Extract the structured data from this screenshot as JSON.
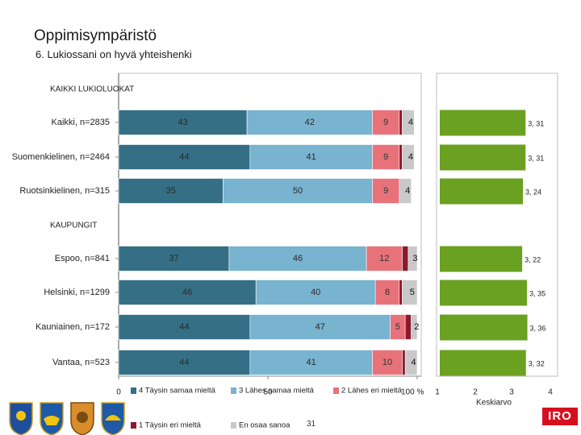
{
  "page": {
    "title": "Oppimisympäristö",
    "subtitle": "6. Lukiossani on hyvä yhteishenki",
    "page_number": "31"
  },
  "colors": {
    "s4": "#356f86",
    "s3": "#78b3cf",
    "s2": "#e8727a",
    "s1": "#8b1a2c",
    "s0": "#c9c9c9",
    "avg": "#6aa121"
  },
  "chart_data": {
    "type": "bar",
    "orientation": "horizontal",
    "stacked": true,
    "title": "6. Lukiossani on hyvä yhteishenki",
    "groups": [
      {
        "label": "KAIKKI LUKIOLUOKAT",
        "categories": [
          "Kaikki, n=2835",
          "Suomenkielinen, n=2464",
          "Ruotsinkielinen, n=315"
        ]
      },
      {
        "label": "KAUPUNGIT",
        "categories": [
          "Espoo, n=841",
          "Helsinki, n=1299",
          "Kauniainen, n=172",
          "Vantaa, n=523"
        ]
      }
    ],
    "categories": [
      "Kaikki, n=2835",
      "Suomenkielinen, n=2464",
      "Ruotsinkielinen, n=315",
      "Espoo, n=841",
      "Helsinki, n=1299",
      "Kauniainen, n=172",
      "Vantaa, n=523"
    ],
    "series": [
      {
        "name": "4 Täysin samaa mieltä",
        "color_key": "s4",
        "values": [
          43,
          44,
          35,
          37,
          46,
          44,
          44
        ]
      },
      {
        "name": "3 Lähes samaa mieltä",
        "color_key": "s3",
        "values": [
          42,
          41,
          50,
          46,
          40,
          47,
          41
        ]
      },
      {
        "name": "2 Lähes eri mieltä",
        "color_key": "s2",
        "values": [
          9,
          9,
          9,
          12,
          8,
          5,
          10
        ]
      },
      {
        "name": "1 Täysin eri mieltä",
        "color_key": "s1",
        "values": [
          1,
          1,
          0,
          2,
          1,
          2,
          1
        ]
      },
      {
        "name": "En osaa sanoa",
        "color_key": "s0",
        "values": [
          4,
          4,
          4,
          3,
          5,
          2,
          4
        ]
      }
    ],
    "label_texts": [
      [
        "43",
        "42",
        "9",
        "",
        "4"
      ],
      [
        "44",
        "41",
        "9",
        "",
        "4"
      ],
      [
        "35",
        "50",
        "9",
        "",
        "4"
      ],
      [
        "37",
        "46",
        "12",
        "2",
        "3"
      ],
      [
        "46",
        "40",
        "8",
        "",
        "5"
      ],
      [
        "44",
        "47",
        "5",
        "2",
        "2"
      ],
      [
        "44",
        "41",
        "10",
        "",
        "4"
      ]
    ],
    "x_ticks": [
      "0",
      "50",
      "100 %"
    ],
    "xlim": [
      0,
      100
    ],
    "average": {
      "xlabel": "Keskiarvo",
      "xlim": [
        1,
        4
      ],
      "ticks": [
        "1",
        "2",
        "3",
        "4"
      ],
      "values": [
        3.31,
        3.31,
        3.24,
        3.22,
        3.35,
        3.36,
        3.32
      ],
      "labels": [
        "3, 31",
        "3, 31",
        "3, 24",
        "3, 22",
        "3, 35",
        "3, 36",
        "3, 32"
      ]
    }
  }
}
